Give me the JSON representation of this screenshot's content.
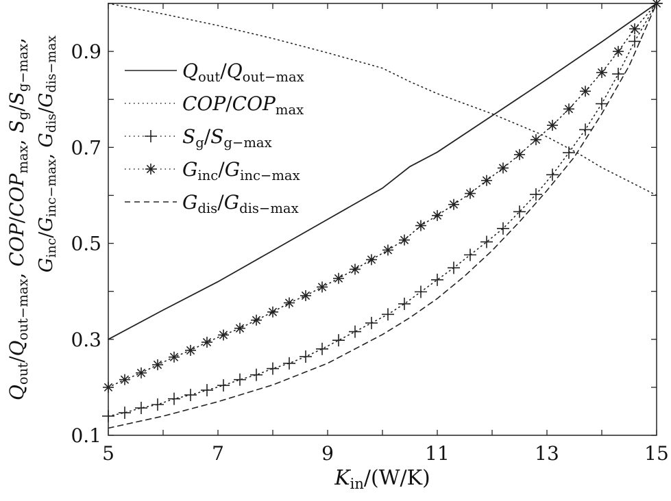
{
  "chart_data": {
    "type": "line",
    "xlabel": [
      {
        "t": "K",
        "i": true
      },
      {
        "t": "in",
        "sub": true
      },
      {
        "t": "/(W/K)"
      }
    ],
    "ylabel_lines": [
      [
        {
          "t": "Q",
          "i": true
        },
        {
          "t": "out",
          "sub": true
        },
        {
          "t": "/"
        },
        {
          "t": "Q",
          "i": true
        },
        {
          "t": "out−max",
          "sub": true
        },
        {
          "t": ", "
        },
        {
          "t": "COP",
          "i": true
        },
        {
          "t": "/"
        },
        {
          "t": "COP",
          "i": true
        },
        {
          "t": "max",
          "sub": true
        },
        {
          "t": ", "
        },
        {
          "t": "S",
          "i": true
        },
        {
          "t": "g",
          "sub": true
        },
        {
          "t": "/"
        },
        {
          "t": "S",
          "i": true
        },
        {
          "t": "g−max",
          "sub": true
        },
        {
          "t": ","
        }
      ],
      [
        {
          "t": "G",
          "i": true
        },
        {
          "t": "inc",
          "sub": true
        },
        {
          "t": "/"
        },
        {
          "t": "G",
          "i": true
        },
        {
          "t": "inc−max",
          "sub": true
        },
        {
          "t": ", "
        },
        {
          "t": "G",
          "i": true
        },
        {
          "t": "dis",
          "sub": true
        },
        {
          "t": "/"
        },
        {
          "t": "G",
          "i": true
        },
        {
          "t": "dis−max",
          "sub": true
        }
      ]
    ],
    "xlim": [
      5,
      15
    ],
    "ylim": [
      0.1,
      1.0
    ],
    "xticks": [
      "5",
      "7",
      "9",
      "11",
      "13",
      "15"
    ],
    "yticks": [
      "0.1",
      "0.3",
      "0.5",
      "0.7",
      "0.9"
    ],
    "legend_position": "top-left",
    "series": [
      {
        "name": "Q_out/Q_out-max",
        "style": "solid",
        "marker": "none",
        "label": [
          {
            "t": "Q",
            "i": true
          },
          {
            "t": "out",
            "sub": true
          },
          {
            "t": "/"
          },
          {
            "t": "Q",
            "i": true
          },
          {
            "t": "out−max",
            "sub": true
          }
        ],
        "x": [
          5,
          6,
          7,
          8,
          9,
          10,
          10.5,
          11,
          12,
          13,
          14,
          15
        ],
        "y": [
          0.3,
          0.361,
          0.42,
          0.485,
          0.55,
          0.615,
          0.66,
          0.69,
          0.766,
          0.842,
          0.92,
          1.0
        ]
      },
      {
        "name": "COP/COP_max",
        "style": "dotted",
        "marker": "none",
        "label": [
          {
            "t": "COP",
            "i": true
          },
          {
            "t": "/"
          },
          {
            "t": "COP",
            "i": true
          },
          {
            "t": "max",
            "sub": true
          }
        ],
        "x": [
          5,
          6,
          7,
          8,
          9,
          10,
          10.5,
          11,
          12,
          13,
          13.56,
          14,
          15
        ],
        "y": [
          1.0,
          0.978,
          0.954,
          0.927,
          0.897,
          0.865,
          0.837,
          0.812,
          0.77,
          0.722,
          0.688,
          0.658,
          0.6
        ]
      },
      {
        "name": "S_g/S_g-max",
        "style": "dotted",
        "marker": "plus",
        "label": [
          {
            "t": "S",
            "i": true
          },
          {
            "t": "g",
            "sub": true
          },
          {
            "t": "/"
          },
          {
            "t": "S",
            "i": true
          },
          {
            "t": "g−max",
            "sub": true
          }
        ],
        "x": [
          5,
          5.3,
          5.6,
          5.9,
          6.2,
          6.5,
          6.8,
          7.1,
          7.4,
          7.7,
          8.0,
          8.3,
          8.6,
          8.9,
          9.2,
          9.5,
          9.8,
          10.1,
          10.4,
          10.7,
          11.0,
          11.3,
          11.6,
          11.9,
          12.2,
          12.5,
          12.8,
          13.1,
          13.4,
          13.7,
          14.0,
          14.3,
          14.6,
          15
        ],
        "y": [
          0.14,
          0.147,
          0.157,
          0.164,
          0.176,
          0.184,
          0.194,
          0.204,
          0.216,
          0.226,
          0.239,
          0.25,
          0.264,
          0.28,
          0.298,
          0.316,
          0.334,
          0.352,
          0.374,
          0.399,
          0.424,
          0.449,
          0.476,
          0.503,
          0.531,
          0.566,
          0.602,
          0.643,
          0.689,
          0.737,
          0.791,
          0.853,
          0.921,
          1.0
        ]
      },
      {
        "name": "G_inc/G_inc-max",
        "style": "dotted",
        "marker": "star",
        "label": [
          {
            "t": "G",
            "i": true
          },
          {
            "t": "inc",
            "sub": true
          },
          {
            "t": "/"
          },
          {
            "t": "G",
            "i": true
          },
          {
            "t": "inc−max",
            "sub": true
          }
        ],
        "x": [
          5,
          5.3,
          5.6,
          5.9,
          6.2,
          6.5,
          6.8,
          7.1,
          7.4,
          7.7,
          8.0,
          8.3,
          8.6,
          8.9,
          9.2,
          9.5,
          9.8,
          10.1,
          10.4,
          10.7,
          11.0,
          11.3,
          11.6,
          11.9,
          12.2,
          12.5,
          12.8,
          13.1,
          13.4,
          13.7,
          14.0,
          14.3,
          14.6,
          15
        ],
        "y": [
          0.2,
          0.216,
          0.23,
          0.247,
          0.263,
          0.277,
          0.294,
          0.309,
          0.323,
          0.34,
          0.357,
          0.376,
          0.391,
          0.409,
          0.427,
          0.446,
          0.466,
          0.486,
          0.507,
          0.537,
          0.558,
          0.581,
          0.604,
          0.631,
          0.657,
          0.685,
          0.716,
          0.746,
          0.78,
          0.817,
          0.856,
          0.9,
          0.947,
          1.0
        ]
      },
      {
        "name": "G_dis/G_dis-max",
        "style": "dashed",
        "marker": "none",
        "label": [
          {
            "t": "G",
            "i": true
          },
          {
            "t": "dis",
            "sub": true
          },
          {
            "t": "/"
          },
          {
            "t": "G",
            "i": true
          },
          {
            "t": "dis−max",
            "sub": true
          }
        ],
        "x": [
          5,
          6,
          7,
          8,
          9,
          10,
          10.5,
          11,
          11.5,
          12,
          12.5,
          13,
          13.5,
          14,
          14.5,
          15
        ],
        "y": [
          0.115,
          0.14,
          0.17,
          0.205,
          0.25,
          0.31,
          0.345,
          0.385,
          0.432,
          0.485,
          0.545,
          0.61,
          0.68,
          0.77,
          0.87,
          1.0
        ]
      }
    ]
  }
}
